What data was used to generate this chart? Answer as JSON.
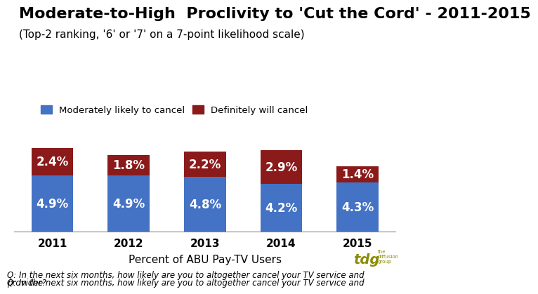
{
  "title": "Moderate-to-High  Proclivity to 'Cut the Cord' - 2011-2015",
  "subtitle": "(Top-2 ranking, '6' or '7' on a 7-point likelihood scale)",
  "years": [
    "2011",
    "2012",
    "2013",
    "2014",
    "2015"
  ],
  "blue_values": [
    4.9,
    4.9,
    4.8,
    4.2,
    4.3
  ],
  "red_values": [
    2.4,
    1.8,
    2.2,
    2.9,
    1.4
  ],
  "blue_labels": [
    "4.9%",
    "4.9%",
    "4.8%",
    "4.2%",
    "4.3%"
  ],
  "red_labels": [
    "2.4%",
    "1.8%",
    "2.2%",
    "2.9%",
    "1.4%"
  ],
  "blue_color": "#4472C4",
  "red_color": "#8B1A1A",
  "xlabel": "Percent of ABU Pay-TV Users",
  "legend_blue": "Moderately likely to cancel",
  "legend_red": "Definitely will cancel",
  "footnote": "Q: In the next six months, how likely are you to altogether cancel your TV service and not sign up with  another traditional\nprovider?",
  "ylim": [
    0,
    8.5
  ],
  "bar_width": 0.55,
  "background_color": "#FFFFFF",
  "title_fontsize": 16,
  "subtitle_fontsize": 11,
  "label_fontsize": 12,
  "tick_fontsize": 11,
  "footnote_fontsize": 8.5
}
